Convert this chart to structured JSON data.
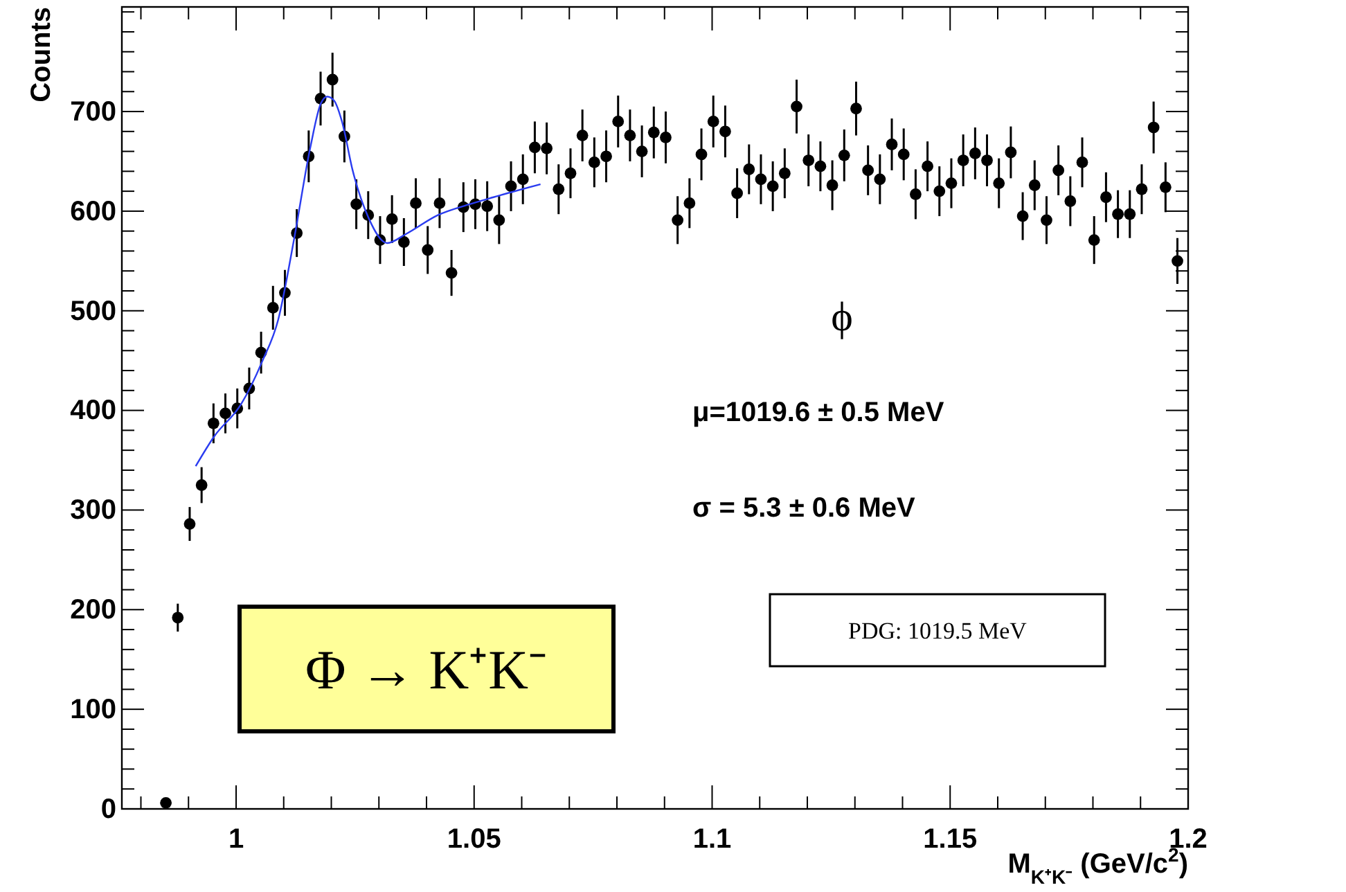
{
  "chart_data": {
    "type": "scatter",
    "xlabel": "M$_{K⁺K⁻}$ (GeV/c$^{2}$)",
    "ylabel": "Counts",
    "xlim": [
      0.976,
      1.2
    ],
    "ylim": [
      0,
      805
    ],
    "xticks": [
      {
        "value": 0.98,
        "label": null
      },
      {
        "value": 0.99,
        "label": null
      },
      1,
      {
        "value": 1.01,
        "label": null
      },
      {
        "value": 1.02,
        "label": null
      },
      {
        "value": 1.03,
        "label": null
      },
      {
        "value": 1.04,
        "label": null
      },
      1.05,
      {
        "value": 1.06,
        "label": null
      },
      {
        "value": 1.07,
        "label": null
      },
      {
        "value": 1.08,
        "label": null
      },
      {
        "value": 1.09,
        "label": null
      },
      1.1,
      {
        "value": 1.11,
        "label": null
      },
      {
        "value": 1.12,
        "label": null
      },
      {
        "value": 1.13,
        "label": null
      },
      {
        "value": 1.14,
        "label": null
      },
      1.15,
      {
        "value": 1.16,
        "label": null
      },
      {
        "value": 1.17,
        "label": null
      },
      {
        "value": 1.18,
        "label": null
      },
      {
        "value": 1.19,
        "label": null
      },
      1.2
    ],
    "yticks": [
      0,
      {
        "value": 20,
        "label": null
      },
      {
        "value": 40,
        "label": null
      },
      {
        "value": 60,
        "label": null
      },
      {
        "value": 80,
        "label": null
      },
      100,
      {
        "value": 120,
        "label": null
      },
      {
        "value": 140,
        "label": null
      },
      {
        "value": 160,
        "label": null
      },
      {
        "value": 180,
        "label": null
      },
      200,
      {
        "value": 220,
        "label": null
      },
      {
        "value": 240,
        "label": null
      },
      {
        "value": 260,
        "label": null
      },
      {
        "value": 280,
        "label": null
      },
      300,
      {
        "value": 320,
        "label": null
      },
      {
        "value": 340,
        "label": null
      },
      {
        "value": 360,
        "label": null
      },
      {
        "value": 380,
        "label": null
      },
      400,
      {
        "value": 420,
        "label": null
      },
      {
        "value": 440,
        "label": null
      },
      {
        "value": 460,
        "label": null
      },
      {
        "value": 480,
        "label": null
      },
      500,
      {
        "value": 520,
        "label": null
      },
      {
        "value": 540,
        "label": null
      },
      {
        "value": 560,
        "label": null
      },
      {
        "value": 580,
        "label": null
      },
      600,
      {
        "value": 620,
        "label": null
      },
      {
        "value": 640,
        "label": null
      },
      {
        "value": 660,
        "label": null
      },
      {
        "value": 680,
        "label": null
      },
      700,
      {
        "value": 720,
        "label": null
      },
      {
        "value": 740,
        "label": null
      },
      {
        "value": 760,
        "label": null
      },
      {
        "value": 780,
        "label": null
      },
      {
        "value": 800,
        "label": null
      }
    ],
    "grid": false,
    "annotations": [
      "ϕ",
      "μ=1019.6 ± 0.5 MeV",
      "σ = 5.3 ± 0.6 MeV",
      "PDG: 1019.5 MeV",
      "Φ → K⁺K⁻"
    ],
    "series": [
      {
        "marker": "circle",
        "color": "#000000",
        "x": [
          0.98525,
          0.98775,
          0.99025,
          0.99275,
          0.99525,
          0.99775,
          1.00025,
          1.00275,
          1.00525,
          1.00775,
          1.01025,
          1.01275,
          1.01525,
          1.01775,
          1.02025,
          1.02275,
          1.02525,
          1.02775,
          1.03025,
          1.03275,
          1.03525,
          1.03775,
          1.04025,
          1.04275,
          1.04525,
          1.04775,
          1.05025,
          1.05275,
          1.05525,
          1.05775,
          1.06025,
          1.06275,
          1.06525,
          1.06775,
          1.07025,
          1.07275,
          1.07525,
          1.07775,
          1.08025,
          1.08275,
          1.08525,
          1.08775,
          1.09025,
          1.09275,
          1.09525,
          1.09775,
          1.10025,
          1.10275,
          1.10525,
          1.10775,
          1.11025,
          1.11275,
          1.11525,
          1.11775,
          1.12025,
          1.12275,
          1.12525,
          1.12775,
          1.13025,
          1.13275,
          1.13525,
          1.13775,
          1.14025,
          1.14275,
          1.14525,
          1.14775,
          1.15025,
          1.15275,
          1.15525,
          1.15775,
          1.16025,
          1.16275,
          1.16525,
          1.16775,
          1.17025,
          1.17275,
          1.17525,
          1.17775,
          1.18025,
          1.18275,
          1.18525,
          1.18775,
          1.19025,
          1.19275,
          1.19525,
          1.19775
        ],
        "values": [
          6,
          192,
          286,
          325,
          387,
          397,
          402,
          422,
          458,
          503,
          518,
          578,
          655,
          713,
          732,
          675,
          607,
          596,
          571,
          592,
          569,
          608,
          561,
          608,
          538,
          604,
          607,
          605,
          591,
          625,
          632,
          664,
          663,
          622,
          638,
          676,
          649,
          655,
          690,
          676,
          660,
          679,
          674,
          591,
          608,
          657,
          690,
          680,
          618,
          642,
          632,
          625,
          638,
          705,
          651,
          645,
          626,
          656,
          703,
          641,
          632,
          667,
          657,
          617,
          645,
          620,
          628,
          651,
          658,
          651,
          628,
          659,
          595,
          626,
          591,
          641,
          610,
          649,
          571,
          614,
          597,
          597,
          622,
          684,
          624,
          550
        ],
        "errors": [
          3,
          14,
          17,
          18,
          20,
          20,
          20,
          21,
          21,
          22,
          23,
          24,
          26,
          27,
          27,
          26,
          25,
          24,
          24,
          24,
          24,
          25,
          24,
          25,
          23,
          25,
          25,
          25,
          24,
          25,
          25,
          26,
          26,
          25,
          25,
          26,
          25,
          26,
          26,
          26,
          26,
          26,
          26,
          24,
          25,
          26,
          26,
          26,
          25,
          25,
          25,
          25,
          25,
          27,
          26,
          25,
          25,
          26,
          27,
          25,
          25,
          26,
          26,
          25,
          25,
          25,
          25,
          26,
          26,
          26,
          25,
          26,
          24,
          25,
          24,
          25,
          25,
          25,
          24,
          25,
          24,
          24,
          25,
          26,
          25,
          23
        ]
      },
      {
        "type": "line",
        "color": "#2a3cf0",
        "x": [
          0.99151,
          0.99541,
          1.00102,
          1.00547,
          1.00884,
          1.01218,
          1.01555,
          1.01779,
          1.01913,
          1.02058,
          1.02224,
          1.02448,
          1.02785,
          1.03174,
          1.03567,
          1.04238,
          1.04907,
          1.05407,
          1.06395
        ],
        "values": [
          344,
          374,
          406,
          449,
          491,
          572,
          663,
          708,
          715,
          711,
          690,
          641,
          593,
          568,
          577,
          596,
          607,
          614,
          627
        ]
      }
    ]
  }
}
